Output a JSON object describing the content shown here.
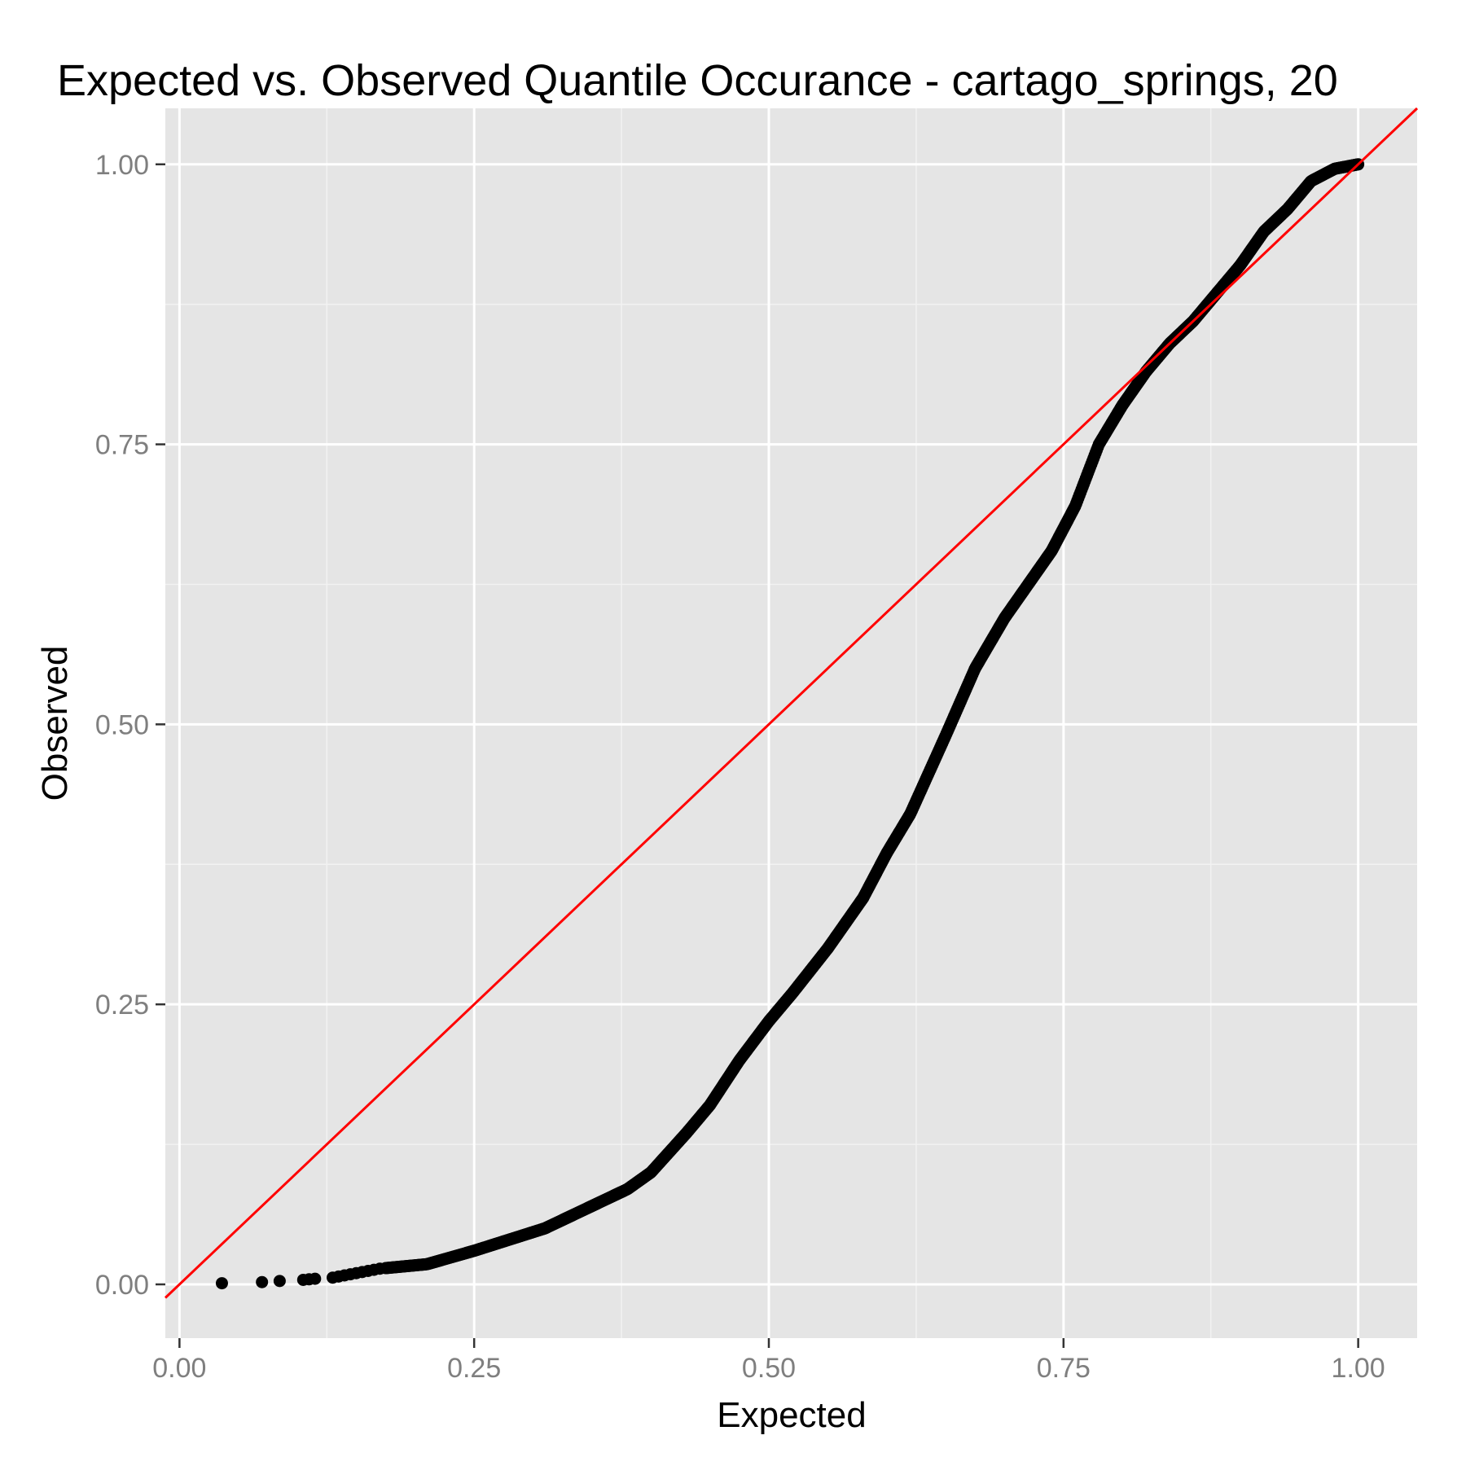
{
  "chart_data": {
    "type": "scatter",
    "title": "Expected vs. Observed Quantile Occurance - cartago_springs, 20",
    "xlabel": "Expected",
    "ylabel": "Observed",
    "xlim": [
      -0.012,
      1.05
    ],
    "ylim": [
      -0.048,
      1.05
    ],
    "x_ticks": [
      0.0,
      0.25,
      0.5,
      0.75,
      1.0
    ],
    "x_tick_labels": [
      "0.00",
      "0.25",
      "0.50",
      "0.75",
      "1.00"
    ],
    "y_ticks": [
      0.0,
      0.25,
      0.5,
      0.75,
      1.0
    ],
    "y_tick_labels": [
      "0.00",
      "0.25",
      "0.50",
      "0.75",
      "1.00"
    ],
    "grid": true,
    "legend": "none",
    "colors": {
      "panel_background": "#e5e5e5",
      "grid_major": "#ffffff",
      "grid_minor": "#f2f2f2",
      "points": "#000000",
      "reference_line": "#ff0000",
      "tick_label": "#7f7f7f"
    },
    "reference_line": {
      "intercept": 0,
      "slope": 1
    },
    "curve_knots": [
      [
        0.036,
        0.001
      ],
      [
        0.07,
        0.002
      ],
      [
        0.085,
        0.003
      ],
      [
        0.105,
        0.004
      ],
      [
        0.115,
        0.005
      ],
      [
        0.13,
        0.006
      ],
      [
        0.15,
        0.01
      ],
      [
        0.17,
        0.014
      ],
      [
        0.19,
        0.016
      ],
      [
        0.21,
        0.018
      ],
      [
        0.25,
        0.03
      ],
      [
        0.28,
        0.04
      ],
      [
        0.31,
        0.05
      ],
      [
        0.35,
        0.07
      ],
      [
        0.38,
        0.085
      ],
      [
        0.4,
        0.1
      ],
      [
        0.43,
        0.135
      ],
      [
        0.45,
        0.16
      ],
      [
        0.475,
        0.2
      ],
      [
        0.5,
        0.235
      ],
      [
        0.52,
        0.26
      ],
      [
        0.55,
        0.3
      ],
      [
        0.58,
        0.345
      ],
      [
        0.6,
        0.385
      ],
      [
        0.62,
        0.42
      ],
      [
        0.65,
        0.49
      ],
      [
        0.675,
        0.55
      ],
      [
        0.7,
        0.595
      ],
      [
        0.72,
        0.625
      ],
      [
        0.74,
        0.655
      ],
      [
        0.76,
        0.695
      ],
      [
        0.78,
        0.75
      ],
      [
        0.8,
        0.785
      ],
      [
        0.82,
        0.815
      ],
      [
        0.84,
        0.84
      ],
      [
        0.86,
        0.86
      ],
      [
        0.88,
        0.885
      ],
      [
        0.9,
        0.91
      ],
      [
        0.92,
        0.94
      ],
      [
        0.94,
        0.96
      ],
      [
        0.96,
        0.985
      ],
      [
        0.98,
        0.996
      ],
      [
        1.0,
        1.0
      ]
    ],
    "n_points": 900
  }
}
